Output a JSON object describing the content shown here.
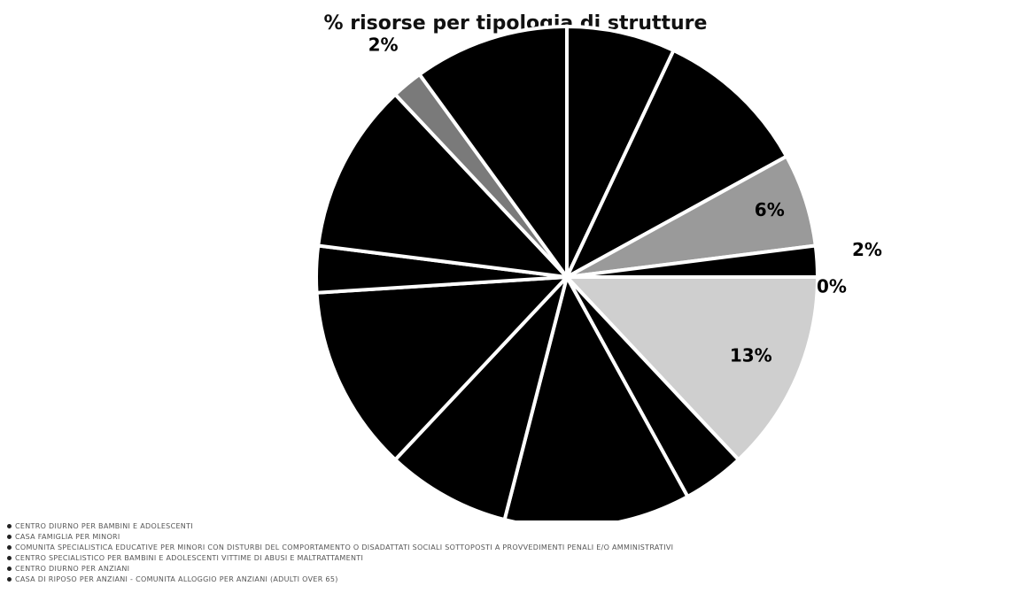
{
  "chart_data": {
    "type": "pie",
    "title": "% risorse per tipologia di strutture",
    "slices": [
      {
        "value": 7,
        "color": "#000000",
        "label": ""
      },
      {
        "value": 10,
        "color": "#000000",
        "label": ""
      },
      {
        "value": 6,
        "color": "#9a9a9a",
        "label": "6%"
      },
      {
        "value": 2,
        "color": "#000000",
        "label": "2%"
      },
      {
        "value": 0,
        "color": "#000000",
        "label": "0%"
      },
      {
        "value": 13,
        "color": "#cfcfcf",
        "label": "13%"
      },
      {
        "value": 4,
        "color": "#000000",
        "label": ""
      },
      {
        "value": 12,
        "color": "#000000",
        "label": ""
      },
      {
        "value": 8,
        "color": "#000000",
        "label": ""
      },
      {
        "value": 12,
        "color": "#000000",
        "label": ""
      },
      {
        "value": 3,
        "color": "#000000",
        "label": ""
      },
      {
        "value": 11,
        "color": "#000000",
        "label": ""
      },
      {
        "value": 2,
        "color": "#7a7a7a",
        "label": "2%"
      },
      {
        "value": 10,
        "color": "#000000",
        "label": ""
      }
    ],
    "legend": [
      "CENTRO DIURNO PER BAMBINI E ADOLESCENTI",
      "CASA FAMIGLIA PER MINORI",
      "COMUNITA SPECIALISTICA EDUCATIVE PER MINORI CON DISTURBI DEL COMPORTAMENTO O DISADATTATI SOCIALI SOTTOPOSTI A PROVVEDIMENTI PENALI E/O AMMINISTRATIVI",
      "CENTRO SPECIALISTICO PER BAMBINI E ADOLESCENTI VITTIME DI ABUSI E MALTRATTAMENTI",
      "CENTRO DIURNO PER ANZIANI",
      "CASA DI RIPOSO PER ANZIANI - COMUNITA ALLOGGIO PER ANZIANI (ADULTI OVER 65)"
    ],
    "legend_position": "bottom-left"
  }
}
